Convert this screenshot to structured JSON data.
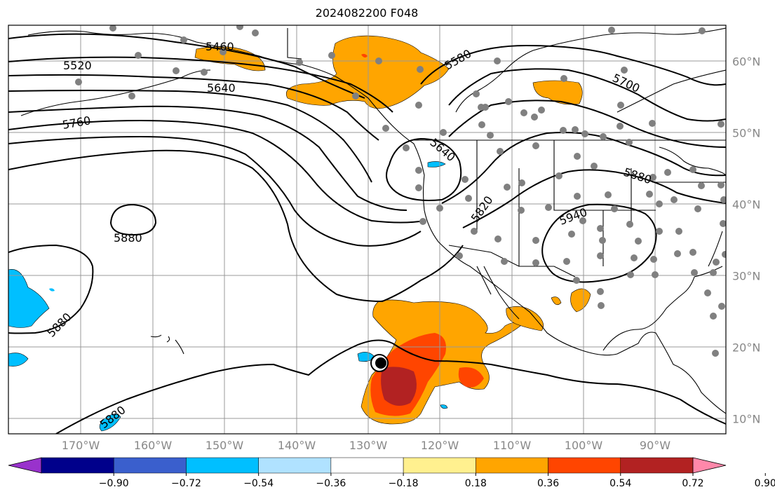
{
  "title": "2024082200 F048",
  "lon_labels": [
    "170°W",
    "160°W",
    "150°W",
    "140°W",
    "130°W",
    "120°W",
    "110°W",
    "100°W",
    "90°W"
  ],
  "lat_labels": [
    "60°N",
    "50°N",
    "40°N",
    "30°N",
    "20°N",
    "10°N"
  ],
  "contour_labels": [
    "5460",
    "5520",
    "5640",
    "5760",
    "5580",
    "5700",
    "5640",
    "5880",
    "5820",
    "5940",
    "5880",
    "5880",
    "5880"
  ],
  "colorbar": {
    "ticks": [
      "−0.90",
      "−0.72",
      "−0.54",
      "−0.36",
      "−0.18",
      "0.18",
      "0.36",
      "0.54",
      "0.72",
      "0.90"
    ],
    "colors": [
      "#9932cc",
      "#00008b",
      "#3a5fcd",
      "#00bfff",
      "#b0e2ff",
      "#ffffff",
      "#fff08f",
      "#ffa500",
      "#ff4500",
      "#b22222",
      "#ff88aa"
    ]
  },
  "fill_colors": {
    "orange": "#ffa500",
    "red_orange": "#ff4500",
    "dark_red": "#b22222",
    "deep_sky": "#00bfff"
  },
  "station_marker_color": "#808080",
  "storm_marker": "tropical-cyclone-symbol"
}
